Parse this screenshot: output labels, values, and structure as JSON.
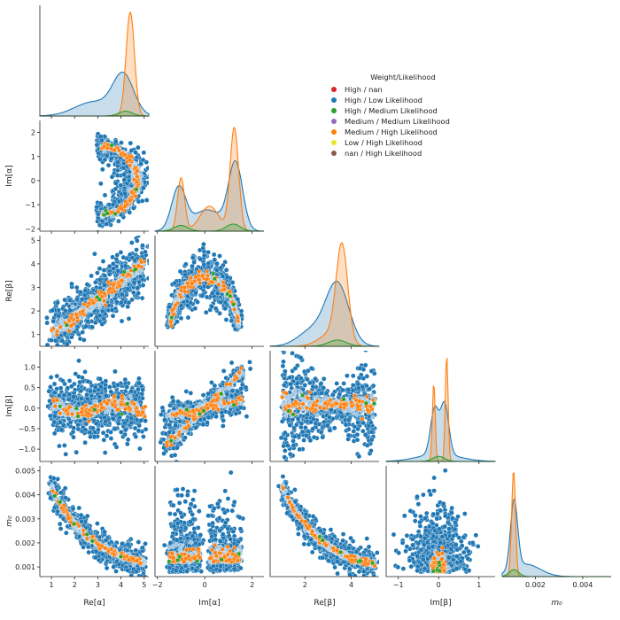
{
  "legend": {
    "title": "Weight/Likelihood",
    "entries": [
      {
        "label": "High / nan",
        "color": "#d62728"
      },
      {
        "label": "High / Low Likelihood",
        "color": "#1f77b4"
      },
      {
        "label": "High / Medium Likelihood",
        "color": "#2ca02c"
      },
      {
        "label": "Medium / Medium Likelihood",
        "color": "#9467bd"
      },
      {
        "label": "Medium / High Likelihood",
        "color": "#ff7f0e"
      },
      {
        "label": "Low / High Likelihood",
        "color": "#e5e52a"
      },
      {
        "label": "nan / High Likelihood",
        "color": "#8c564b"
      }
    ]
  },
  "chart_data": {
    "type": "scatter",
    "layout": "pairplot-lower-triangle",
    "variables": [
      {
        "label": "Re[α]",
        "range": [
          0.5,
          5.2
        ],
        "ticks": [
          1,
          2,
          3,
          4,
          5
        ],
        "tick_labels": [
          "1",
          "2",
          "3",
          "4",
          "5"
        ]
      },
      {
        "label": "Im[α]",
        "range": [
          -2.1,
          2.5
        ],
        "ticks": [
          -2,
          -1,
          0,
          1,
          2
        ],
        "tick_labels": [
          "−2",
          "−1",
          "0",
          "1",
          "2"
        ]
      },
      {
        "label": "Re[β]",
        "range": [
          0.5,
          5.2
        ],
        "ticks": [
          1,
          2,
          3,
          4,
          5
        ],
        "tick_labels": [
          "1",
          "2",
          "3",
          "4",
          "5"
        ]
      },
      {
        "label": "Im[β]",
        "range": [
          -1.3,
          1.4
        ],
        "ticks": [
          -1.0,
          -0.5,
          0.0,
          0.5,
          1.0
        ],
        "tick_labels": [
          "−1.0",
          "−0.5",
          "0.0",
          "0.5",
          "1.0"
        ]
      },
      {
        "label": "m₀",
        "range": [
          0.0006,
          0.0052
        ],
        "ticks": [
          0.001,
          0.002,
          0.003,
          0.004,
          0.005
        ],
        "tick_labels": [
          "0.001",
          "0.002",
          "0.003",
          "0.004",
          "0.005"
        ]
      }
    ],
    "x_tick_overrides": {
      "1": {
        "ticks": [
          -2,
          0,
          2
        ],
        "tick_labels": [
          "−2",
          "0",
          "2"
        ]
      },
      "2": {
        "ticks": [
          2,
          4
        ],
        "tick_labels": [
          "2",
          "4"
        ]
      },
      "3": {
        "ticks": [
          -1,
          0,
          1
        ],
        "tick_labels": [
          "−1",
          "0",
          "1"
        ]
      },
      "4": {
        "ticks": [
          0.002,
          0.004
        ],
        "tick_labels": [
          "0.002",
          "0.004"
        ]
      }
    },
    "diagonal": {
      "type": "kde",
      "series": [
        {
          "name": "High / Low Likelihood",
          "color": "#1f77b4"
        },
        {
          "name": "Medium / High Likelihood",
          "color": "#ff7f0e"
        },
        {
          "name": "High / Medium Likelihood",
          "color": "#2ca02c"
        }
      ],
      "peaks": [
        {
          "var": 0,
          "blue_mode": 4.1,
          "orange_mode": 4.4
        },
        {
          "var": 1,
          "blue_modes": [
            -1.1,
            1.3
          ],
          "orange_modes": [
            -1.0,
            1.3
          ]
        },
        {
          "var": 2,
          "blue_mode": 3.4,
          "orange_mode": 3.6
        },
        {
          "var": 3,
          "blue_modes": [
            -0.1,
            0.15
          ],
          "orange_modes": [
            -0.12,
            0.2
          ]
        },
        {
          "var": 4,
          "blue_mode": 0.0011,
          "orange_mode": 0.0011
        }
      ]
    },
    "grid": false
  }
}
